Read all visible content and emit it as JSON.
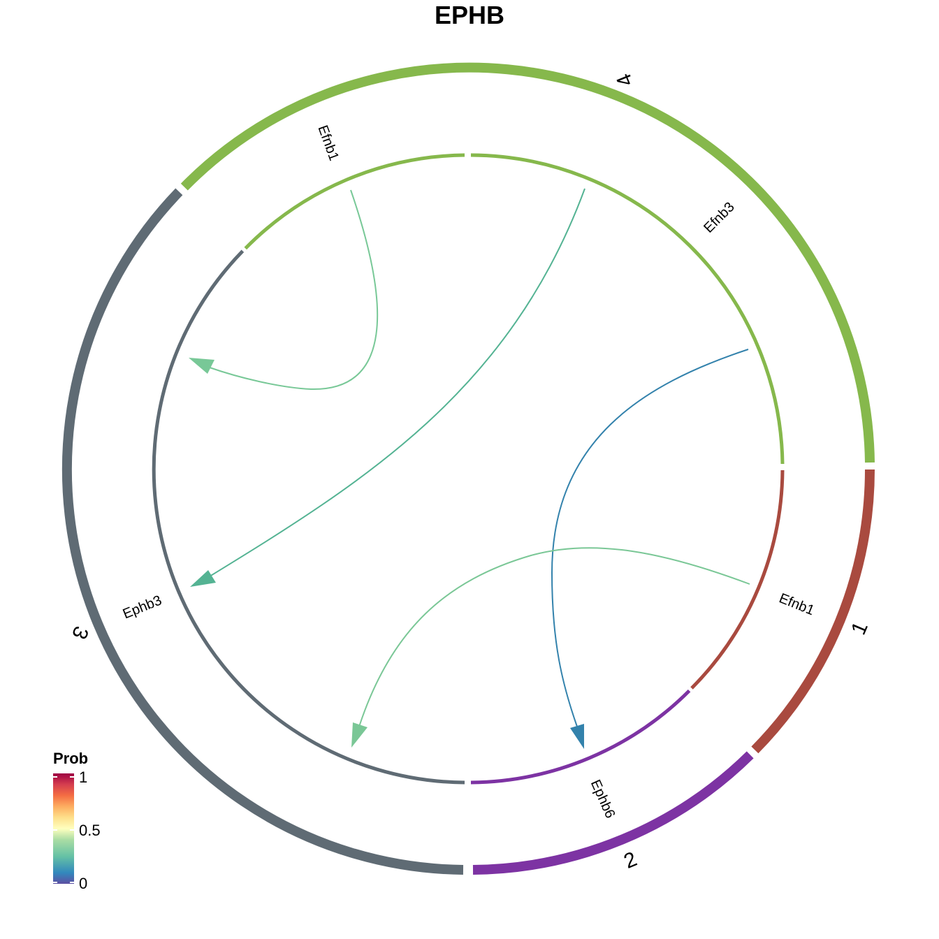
{
  "title": "EPHB",
  "sectors": [
    {
      "id": "1",
      "label": "1",
      "color": "#A94A3F"
    },
    {
      "id": "2",
      "label": "2",
      "color": "#7D33A3"
    },
    {
      "id": "3",
      "label": "3",
      "color": "#5F6B74"
    },
    {
      "id": "4",
      "label": "4",
      "color": "#86B84C"
    }
  ],
  "genes": [
    {
      "id": "g1",
      "sector": "1",
      "label": "Efnb1"
    },
    {
      "id": "g2",
      "sector": "2",
      "label": "Ephb6"
    },
    {
      "id": "g3",
      "sector": "3",
      "label": "Ephb3"
    },
    {
      "id": "g4a",
      "sector": "4",
      "label": "Efnb1"
    },
    {
      "id": "g4b",
      "sector": "4",
      "label": "Efnb3"
    }
  ],
  "links": [
    {
      "from": "g4a",
      "to": "g3",
      "color": "#78C897"
    },
    {
      "from": "g4b",
      "to": "g3",
      "color": "#54B393"
    },
    {
      "from": "g4b",
      "to": "g2",
      "color": "#3382AC"
    },
    {
      "from": "g1",
      "to": "g3",
      "color": "#7AC796"
    }
  ],
  "legend": {
    "title": "Prob",
    "ticks": [
      "1",
      "0.5",
      "0"
    ]
  }
}
